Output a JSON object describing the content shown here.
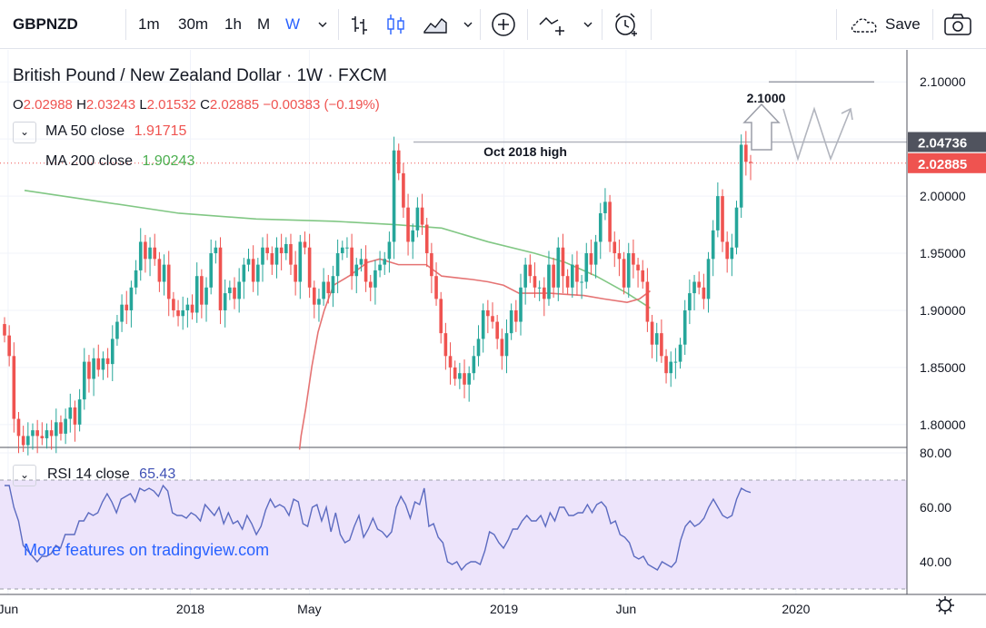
{
  "toolbar": {
    "symbol": "GBPNZD",
    "intervals": [
      "1m",
      "30m",
      "1h",
      "M",
      "W"
    ],
    "active_interval": "W",
    "save_label": "Save",
    "icons": [
      "chevron-down-icon",
      "bar-style-icon",
      "candles-icon",
      "area-icon",
      "add-indicator-icon",
      "drawing-icon",
      "alert-clock-icon",
      "cloud-save-icon",
      "camera-icon"
    ]
  },
  "legend": {
    "title": "British Pound / New Zealand Dollar · 1W · FXCM",
    "ohlc": {
      "O": "2.02988",
      "H": "2.03243",
      "L": "2.01532",
      "C": "2.02885",
      "change": "−0.00383 (−0.19%)"
    },
    "ma50": {
      "label": "MA 50 close",
      "value": "1.91715",
      "color": "#ef5350"
    },
    "ma200": {
      "label": "MA 200 close",
      "value": "1.90243",
      "color": "#4caf50"
    },
    "rsi": {
      "label": "RSI 14 close",
      "value": "65.43",
      "color": "#3f51b5"
    }
  },
  "promo": "More features on tradingview.com",
  "annotations": {
    "high_label": "Oct 2018 high",
    "target_label": "2.1000"
  },
  "chart_data": [
    {
      "type": "candlestick",
      "symbol": "GBPNZD",
      "interval": "1W",
      "ylim": [
        1.78,
        2.128
      ],
      "price_ticks": [
        "2.10000",
        "2.05000",
        "2.00000",
        "1.95000",
        "1.90000",
        "1.85000",
        "1.80000"
      ],
      "x_ticks": [
        "Jun",
        "2018",
        "May",
        "2019",
        "Jun",
        "2020"
      ],
      "price_labels": [
        {
          "value": "2.04736",
          "price": 2.04736,
          "color": "#50535e"
        },
        {
          "value": "2.02885",
          "price": 2.02885,
          "color": "#ef5350"
        }
      ],
      "colors": {
        "up": "#26a69a",
        "down": "#ef5350"
      },
      "candles_close": [
        1.878,
        1.86,
        1.805,
        1.79,
        1.782,
        1.79,
        1.795,
        1.79,
        1.788,
        1.795,
        1.79,
        1.802,
        1.792,
        1.805,
        1.815,
        1.8,
        1.822,
        1.855,
        1.84,
        1.858,
        1.848,
        1.858,
        1.853,
        1.875,
        1.89,
        1.905,
        1.9,
        1.92,
        1.935,
        1.96,
        1.945,
        1.955,
        1.945,
        1.925,
        1.94,
        1.91,
        1.9,
        1.895,
        1.9,
        1.905,
        1.898,
        1.93,
        1.905,
        1.92,
        1.95,
        1.955,
        1.9,
        1.915,
        1.92,
        1.91,
        1.925,
        1.94,
        1.945,
        1.925,
        1.94,
        1.955,
        1.95,
        1.94,
        1.955,
        1.95,
        1.958,
        1.94,
        1.925,
        1.96,
        1.955,
        1.92,
        1.905,
        1.91,
        1.925,
        1.915,
        1.93,
        1.95,
        1.955,
        1.955,
        1.93,
        1.94,
        1.945,
        1.925,
        1.92,
        1.935,
        1.94,
        1.945,
        1.96,
        2.04,
        2.02,
        1.99,
        1.96,
        1.97,
        1.99,
        1.975,
        1.95,
        1.93,
        1.91,
        1.88,
        1.86,
        1.85,
        1.84,
        1.845,
        1.835,
        1.845,
        1.86,
        1.875,
        1.9,
        1.895,
        1.89,
        1.875,
        1.86,
        1.88,
        1.9,
        1.89,
        1.92,
        1.94,
        1.93,
        1.92,
        1.92,
        1.91,
        1.94,
        1.92,
        1.955,
        1.93,
        1.92,
        1.94,
        1.925,
        1.925,
        1.95,
        1.94,
        1.96,
        1.985,
        1.995,
        1.96,
        1.95,
        1.945,
        1.92,
        1.95,
        1.94,
        1.935,
        1.925,
        1.89,
        1.87,
        1.88,
        1.86,
        1.845,
        1.855,
        1.855,
        1.87,
        1.9,
        1.915,
        1.925,
        1.92,
        1.91,
        1.945,
        1.97,
        2.0,
        1.96,
        1.945,
        1.955,
        1.99,
        2.045,
        2.03,
        2.029
      ],
      "ma50": [
        [
          1.78,
          1.778
        ],
        [
          1.79,
          1.79
        ],
        [
          1.82,
          1.814
        ],
        [
          1.86,
          1.851
        ],
        [
          1.9,
          1.881
        ],
        [
          1.94,
          1.9
        ],
        [
          2.0,
          1.922
        ],
        [
          2.1,
          1.93
        ],
        [
          2.22,
          1.942
        ],
        [
          2.3,
          1.945
        ],
        [
          2.42,
          1.94
        ],
        [
          2.6,
          1.94
        ],
        [
          2.7,
          1.93
        ],
        [
          2.9,
          1.927
        ],
        [
          3.0,
          1.925
        ],
        [
          3.1,
          1.922
        ],
        [
          3.2,
          1.915
        ],
        [
          3.3,
          1.915
        ],
        [
          3.4,
          1.915
        ],
        [
          3.5,
          1.914
        ],
        [
          3.62,
          1.913
        ],
        [
          3.75,
          1.91
        ],
        [
          3.9,
          1.907
        ],
        [
          3.98,
          1.91
        ],
        [
          4.05,
          1.917
        ]
      ],
      "ma200": [
        [
          0.0,
          2.005
        ],
        [
          0.5,
          1.995
        ],
        [
          1.0,
          1.985
        ],
        [
          1.5,
          1.98
        ],
        [
          2.0,
          1.978
        ],
        [
          2.4,
          1.975
        ],
        [
          2.7,
          1.972
        ],
        [
          3.0,
          1.96
        ],
        [
          3.3,
          1.95
        ],
        [
          3.5,
          1.942
        ],
        [
          3.7,
          1.93
        ],
        [
          3.9,
          1.915
        ],
        [
          4.05,
          1.902
        ]
      ],
      "resistance_level": 2.0474,
      "target_level": 2.1
    },
    {
      "type": "line",
      "name": "RSI 14 close",
      "ylim": [
        28,
        82
      ],
      "y_ticks": [
        "80.00",
        "60.00",
        "40.00"
      ],
      "band": [
        30,
        70
      ],
      "values": [
        68,
        68,
        60,
        55,
        46,
        44,
        42,
        40,
        42,
        42,
        43,
        46,
        45,
        50,
        50,
        50,
        55,
        55,
        58,
        57,
        58,
        62,
        65,
        62,
        58,
        63,
        64,
        65,
        62,
        67,
        66,
        67,
        66,
        64,
        68,
        66,
        58,
        57,
        57,
        56,
        58,
        57,
        55,
        61,
        59,
        57,
        60,
        54,
        58,
        54,
        55,
        52,
        57,
        54,
        50,
        53,
        59,
        63,
        60,
        61,
        60,
        57,
        63,
        62,
        54,
        53,
        60,
        61,
        55,
        60,
        51,
        58,
        50,
        47,
        48,
        53,
        57,
        49,
        52,
        56,
        52,
        51,
        49,
        51,
        60,
        64,
        61,
        56,
        62,
        61,
        67,
        53,
        54,
        49,
        47,
        40,
        39,
        40,
        37,
        39,
        40,
        40,
        39,
        44,
        51,
        50,
        47,
        45,
        48,
        52,
        52,
        55,
        57,
        55,
        55,
        57,
        53,
        58,
        55,
        60,
        60,
        57,
        57,
        58,
        58,
        61,
        58,
        61,
        62,
        60,
        54,
        55,
        50,
        49,
        47,
        42,
        41,
        42,
        39,
        38,
        37,
        40,
        39,
        38,
        40,
        48,
        53,
        55,
        53,
        54,
        56,
        60,
        63,
        60,
        57,
        56,
        57,
        63,
        67,
        66,
        65.43
      ],
      "value_label": "65.43"
    }
  ]
}
